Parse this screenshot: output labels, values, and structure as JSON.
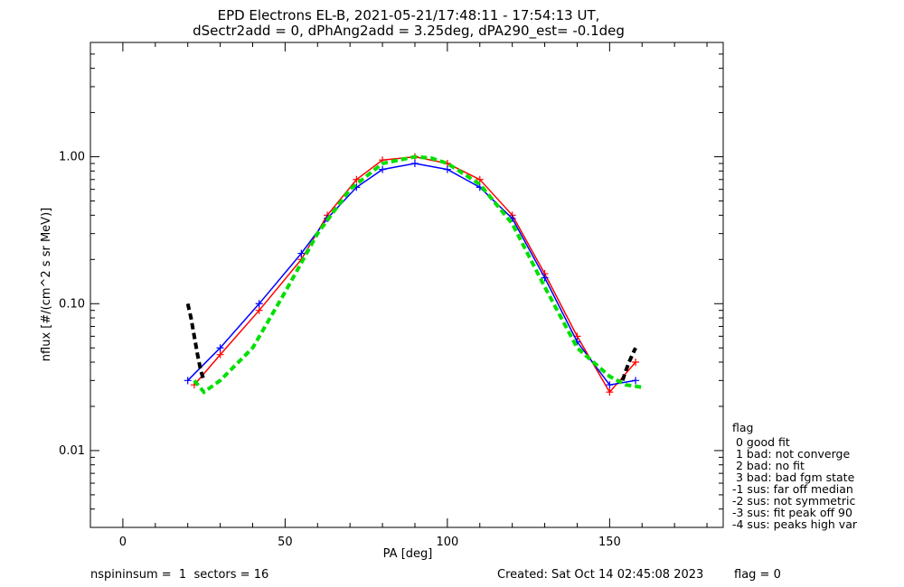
{
  "chart_data": {
    "type": "line",
    "title": "EPD Electrons EL-B, 2021-05-21/17:48:11 - 17:54:13 UT,",
    "subtitle": "dSectr2add = 0, dPhAng2add = 3.25deg, dPA290_est=  -0.1deg",
    "xlabel": "PA [deg]",
    "ylabel": "nflux [#/(cm^2 s sr MeV)]",
    "xlim": [
      -10,
      185
    ],
    "ylim": [
      0.003,
      6
    ],
    "yscale": "log",
    "xticks": [
      {
        "v": 0,
        "label": "0"
      },
      {
        "v": 50,
        "label": "50"
      },
      {
        "v": 100,
        "label": "100"
      },
      {
        "v": 150,
        "label": "150"
      }
    ],
    "yticks": [
      {
        "v": 0.01,
        "label": "0.01"
      },
      {
        "v": 0.1,
        "label": "0.10"
      },
      {
        "v": 1,
        "label": "1.00"
      }
    ],
    "series": [
      {
        "color": "#ff0000",
        "style": "solid with + markers",
        "x": [
          22,
          30,
          42,
          55,
          63,
          72,
          80,
          90,
          100,
          110,
          120,
          130,
          140,
          150,
          158
        ],
        "y": [
          0.028,
          0.045,
          0.09,
          0.2,
          0.4,
          0.7,
          0.95,
          1.0,
          0.9,
          0.7,
          0.4,
          0.16,
          0.06,
          0.025,
          0.04
        ]
      },
      {
        "color": "#0000ff",
        "style": "solid with + markers",
        "x": [
          20,
          30,
          42,
          55,
          63,
          72,
          80,
          90,
          100,
          110,
          120,
          130,
          140,
          150,
          158
        ],
        "y": [
          0.03,
          0.05,
          0.1,
          0.22,
          0.38,
          0.62,
          0.82,
          0.9,
          0.82,
          0.62,
          0.38,
          0.15,
          0.055,
          0.028,
          0.03
        ]
      },
      {
        "color": "#00e000",
        "style": "dashed fit",
        "x": [
          22,
          25,
          30,
          40,
          50,
          60,
          70,
          80,
          90,
          95,
          100,
          110,
          120,
          130,
          140,
          150,
          155,
          160
        ],
        "y": [
          0.03,
          0.025,
          0.03,
          0.05,
          0.12,
          0.3,
          0.6,
          0.9,
          1.0,
          0.98,
          0.9,
          0.65,
          0.35,
          0.13,
          0.05,
          0.032,
          0.028,
          0.027
        ]
      },
      {
        "color": "#000000",
        "style": "dashed fit",
        "x": [
          20,
          21,
          22,
          23,
          24,
          25
        ],
        "y": [
          0.1,
          0.08,
          0.06,
          0.045,
          0.035,
          0.03
        ]
      },
      {
        "color": "#000000",
        "style": "dashed fit",
        "x": [
          154,
          155,
          156,
          157,
          158
        ],
        "y": [
          0.03,
          0.035,
          0.04,
          0.045,
          0.05
        ]
      }
    ],
    "grid": false,
    "legend": {
      "title": "flag",
      "items": [
        " 0 good fit",
        " 1 bad: not converge",
        " 2 bad: no fit",
        " 3 bad: bad fgm state",
        "-1 sus: far off median",
        "-2 sus: not symmetric",
        "-3 sus: fit peak off 90",
        "-4 sus: peaks high var"
      ]
    }
  },
  "footer": {
    "left": "nspininsum =  1  sectors = 16",
    "created": "Created: Sat Oct 14 02:45:08 2023",
    "flag": "flag = 0"
  }
}
